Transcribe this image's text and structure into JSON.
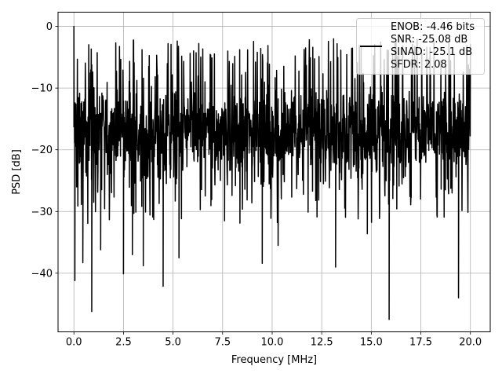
{
  "chart_data": {
    "type": "line",
    "title": "",
    "xlabel": "Frequency [MHz]",
    "ylabel": "PSD [dB]",
    "xlim": [
      -0.8,
      21.0
    ],
    "ylim": [
      -49.5,
      2.3
    ],
    "xticks": [
      0.0,
      2.5,
      5.0,
      7.5,
      10.0,
      12.5,
      15.0,
      17.5,
      20.0
    ],
    "xtick_labels": [
      "0.0",
      "2.5",
      "5.0",
      "7.5",
      "10.0",
      "12.5",
      "15.0",
      "17.5",
      "20.0"
    ],
    "yticks": [
      0,
      -10,
      -20,
      -30,
      -40
    ],
    "ytick_labels": [
      "0",
      "−10",
      "−20",
      "−30",
      "−40"
    ],
    "grid": true,
    "legend_position": "top-right",
    "legend_entries": [
      "ENOB: -4.46 bits",
      "SNR: -25.08 dB",
      "SINAD: -25.1 dB",
      "SFDR: 2.08"
    ],
    "series": [
      {
        "color": "#000000",
        "description": "noisy power spectral density, roughly uniform from 0 to 20 MHz",
        "band_center_db": -17,
        "band_typical_range_db": [
          -30,
          -5
        ],
        "peak": {
          "x": 0.0,
          "y": 0.0
        },
        "notable_dips": [
          {
            "x": 0.05,
            "y": -41.2
          },
          {
            "x": 0.45,
            "y": -38.3
          },
          {
            "x": 0.9,
            "y": -46.2
          },
          {
            "x": 1.35,
            "y": -36.2
          },
          {
            "x": 2.5,
            "y": -40.1
          },
          {
            "x": 2.95,
            "y": -37.0
          },
          {
            "x": 3.5,
            "y": -38.8
          },
          {
            "x": 4.5,
            "y": -42.1
          },
          {
            "x": 5.3,
            "y": -37.5
          },
          {
            "x": 7.6,
            "y": -31.5
          },
          {
            "x": 9.5,
            "y": -38.4
          },
          {
            "x": 10.3,
            "y": -35.5
          },
          {
            "x": 13.2,
            "y": -39.0
          },
          {
            "x": 14.8,
            "y": -33.6
          },
          {
            "x": 15.9,
            "y": -47.5
          },
          {
            "x": 19.4,
            "y": -44.0
          }
        ]
      }
    ]
  }
}
